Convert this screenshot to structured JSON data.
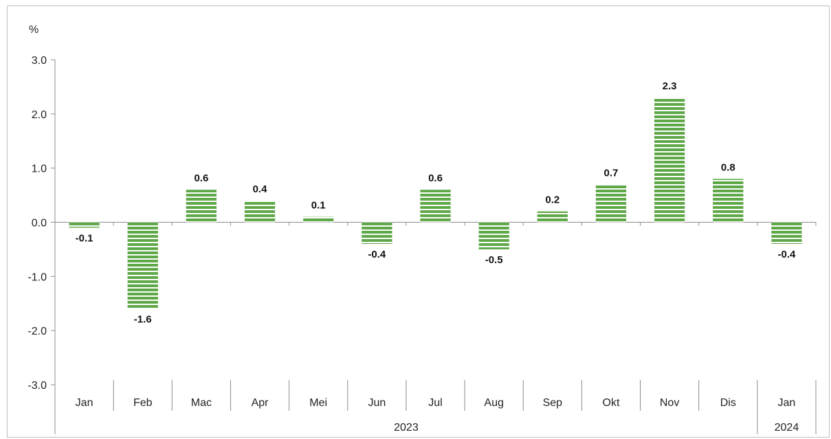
{
  "chart_data": {
    "type": "bar",
    "unit_label": "%",
    "categories": [
      "Jan",
      "Feb",
      "Mac",
      "Apr",
      "Mei",
      "Jun",
      "Jul",
      "Aug",
      "Sep",
      "Okt",
      "Nov",
      "Dis",
      "Jan"
    ],
    "values": [
      -0.1,
      -1.6,
      0.6,
      0.4,
      0.1,
      -0.4,
      0.6,
      -0.5,
      0.2,
      0.7,
      2.3,
      0.8,
      -0.4
    ],
    "value_labels": [
      "-0.1",
      "-1.6",
      "0.6",
      "0.4",
      "0.1",
      "-0.4",
      "0.6",
      "-0.5",
      "0.2",
      "0.7",
      "2.3",
      "0.8",
      "-0.4"
    ],
    "year_groups": [
      {
        "label": "2023",
        "count": 12
      },
      {
        "label": "2024",
        "count": 1
      }
    ],
    "ylim": [
      -3.0,
      3.0
    ],
    "yticks": [
      "-3.0",
      "-2.0",
      "-1.0",
      "0.0",
      "1.0",
      "2.0",
      "3.0"
    ],
    "ytick_values": [
      -3,
      -2,
      -1,
      0,
      1,
      2,
      3
    ],
    "grid": false,
    "bar_color": "#5fa848",
    "stripe_color": "#ffffff"
  }
}
